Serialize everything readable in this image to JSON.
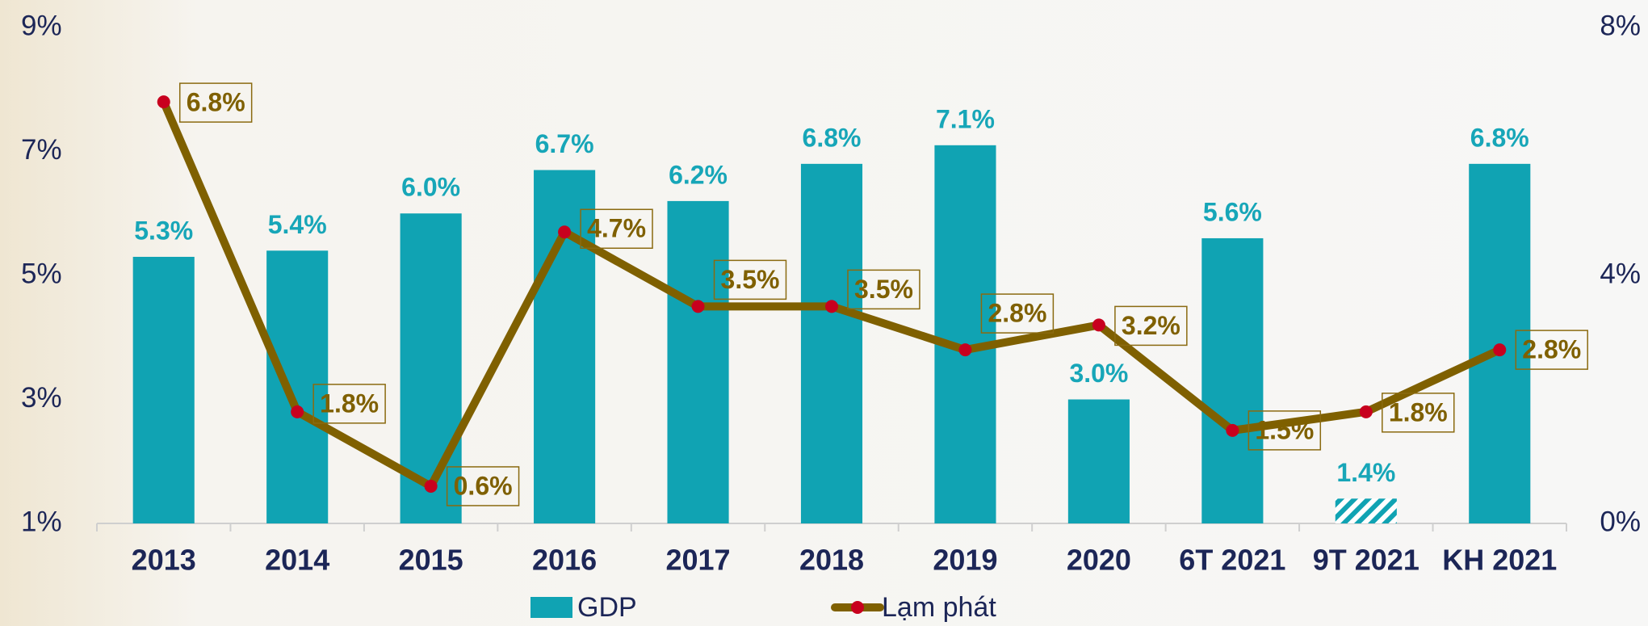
{
  "chart_data": {
    "type": "combo",
    "categories": [
      "2013",
      "2014",
      "2015",
      "2016",
      "2017",
      "2018",
      "2019",
      "2020",
      "6T 2021",
      "9T 2021",
      "KH 2021"
    ],
    "ylim": [
      1,
      9
    ],
    "yticks": [
      {
        "value": 1,
        "label": "1%"
      },
      {
        "value": 3,
        "label": "3%"
      },
      {
        "value": 5,
        "label": "5%"
      },
      {
        "value": 7,
        "label": "7%"
      },
      {
        "value": 9,
        "label": "9%"
      }
    ],
    "y2lim": [
      0,
      8
    ],
    "y2ticks": [
      {
        "value": 0,
        "label": "0%"
      },
      {
        "value": 4,
        "label": "4%"
      },
      {
        "value": 8,
        "label": "8%"
      }
    ],
    "grid": false,
    "legend": "bottom",
    "series": [
      {
        "name": "GDP",
        "type": "bar",
        "color": "#10a3b3",
        "values": [
          5.3,
          5.4,
          6.0,
          6.7,
          6.2,
          6.8,
          7.1,
          3.0,
          5.6,
          1.4,
          6.8
        ],
        "value_labels": [
          "5.3%",
          "5.4%",
          "6.0%",
          "6.7%",
          "6.2%",
          "6.8%",
          "7.1%",
          "3.0%",
          "5.6%",
          "1.4%",
          "6.8%"
        ],
        "patterns": [
          "solid",
          "solid",
          "solid",
          "solid",
          "solid",
          "solid",
          "solid",
          "solid",
          "solid",
          "hatch",
          "solid"
        ]
      },
      {
        "name": "Lạm phát",
        "type": "line",
        "axis": "y2",
        "color": "#7f6000",
        "marker_color": "#c8001e",
        "values": [
          6.8,
          1.8,
          0.6,
          4.7,
          3.5,
          3.5,
          2.8,
          3.2,
          1.5,
          1.8,
          2.8
        ],
        "value_labels": [
          "6.8%",
          "1.8%",
          "0.6%",
          "4.7%",
          "3.5%",
          "3.5%",
          "2.8%",
          "3.2%",
          "1.5%",
          "1.8%",
          "2.8%"
        ]
      }
    ]
  }
}
